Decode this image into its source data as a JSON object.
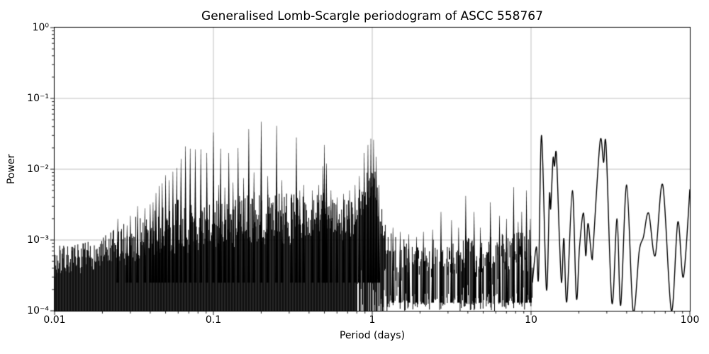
{
  "chart_data": {
    "type": "line",
    "title": "Generalised Lomb-Scargle periodogram of ASCC 558767",
    "xlabel": "Period (days)",
    "ylabel": "Power",
    "x_scale": "log",
    "y_scale": "log",
    "xlim": [
      0.01,
      100
    ],
    "ylim": [
      0.0001,
      1
    ],
    "grid": true,
    "grid_color": "#b0b0b0",
    "line_color": "#000000",
    "background_color": "#ffffff",
    "legend": null,
    "x_tick_labels": [
      "0.01",
      "0.1",
      "1",
      "10",
      "100"
    ],
    "y_tick_labels": [
      "10⁰",
      "10⁻¹",
      "10⁻²",
      "10⁻³",
      "10⁻⁴"
    ],
    "major_peaks": [
      [
        0.025,
        0.002
      ],
      [
        0.0286,
        0.0016
      ],
      [
        0.03,
        0.0022
      ],
      [
        0.0333,
        0.003
      ],
      [
        0.037,
        0.0028
      ],
      [
        0.04,
        0.0032
      ],
      [
        0.0417,
        0.0034
      ],
      [
        0.0435,
        0.0046
      ],
      [
        0.0455,
        0.0058
      ],
      [
        0.0476,
        0.0063
      ],
      [
        0.05,
        0.0082
      ],
      [
        0.0526,
        0.007
      ],
      [
        0.0556,
        0.0092
      ],
      [
        0.0588,
        0.0104
      ],
      [
        0.0625,
        0.014
      ],
      [
        0.0667,
        0.021
      ],
      [
        0.0714,
        0.0195
      ],
      [
        0.0769,
        0.019
      ],
      [
        0.0833,
        0.019
      ],
      [
        0.0909,
        0.017
      ],
      [
        0.1,
        0.033
      ],
      [
        0.108,
        0.006
      ],
      [
        0.111,
        0.0195
      ],
      [
        0.118,
        0.0055
      ],
      [
        0.125,
        0.017
      ],
      [
        0.133,
        0.0065
      ],
      [
        0.143,
        0.02
      ],
      [
        0.155,
        0.0075
      ],
      [
        0.167,
        0.037
      ],
      [
        0.18,
        0.009
      ],
      [
        0.2,
        0.047
      ],
      [
        0.22,
        0.008
      ],
      [
        0.25,
        0.041
      ],
      [
        0.27,
        0.007
      ],
      [
        0.31,
        0.0045
      ],
      [
        0.333,
        0.028
      ],
      [
        0.35,
        0.005
      ],
      [
        0.37,
        0.006
      ],
      [
        0.42,
        0.005
      ],
      [
        0.46,
        0.006
      ],
      [
        0.49,
        0.011
      ],
      [
        0.5,
        0.022
      ],
      [
        0.515,
        0.012
      ],
      [
        0.55,
        0.005
      ],
      [
        0.6,
        0.004
      ],
      [
        0.66,
        0.0045
      ],
      [
        0.72,
        0.005
      ],
      [
        0.78,
        0.006
      ],
      [
        0.83,
        0.008
      ],
      [
        0.89,
        0.017
      ],
      [
        0.94,
        0.022
      ],
      [
        0.98,
        0.027
      ],
      [
        1.02,
        0.026
      ],
      [
        1.06,
        0.015
      ],
      [
        1.1,
        0.006
      ],
      [
        1.35,
        0.0015
      ],
      [
        1.5,
        0.0013
      ],
      [
        1.7,
        0.0012
      ],
      [
        1.9,
        0.0011
      ],
      [
        2.1,
        0.0013
      ],
      [
        2.4,
        0.0014
      ],
      [
        2.71,
        0.0025
      ],
      [
        3.16,
        0.0019
      ],
      [
        3.5,
        0.0015
      ],
      [
        3.88,
        0.0042
      ],
      [
        4.38,
        0.0025
      ],
      [
        4.8,
        0.0015
      ],
      [
        5.55,
        0.0034
      ],
      [
        6.33,
        0.0022
      ],
      [
        7.0,
        0.002
      ],
      [
        7.77,
        0.0056
      ],
      [
        8.3,
        0.0018
      ],
      [
        8.74,
        0.0025
      ],
      [
        9.36,
        0.005
      ],
      [
        9.9,
        0.002
      ]
    ],
    "dense_region": {
      "range": [
        0.01,
        1.28
      ],
      "floor": 0.0001,
      "mass_top": [
        [
          0.01,
          0.00035
        ],
        [
          0.015,
          0.0004
        ],
        [
          0.02,
          0.00045
        ],
        [
          0.03,
          0.0005
        ],
        [
          0.05,
          0.00062
        ],
        [
          0.08,
          0.00072
        ],
        [
          0.1,
          0.0008
        ],
        [
          0.14,
          0.0009
        ],
        [
          0.2,
          0.001
        ],
        [
          0.28,
          0.0009
        ],
        [
          0.35,
          0.001
        ],
        [
          0.45,
          0.0013
        ],
        [
          0.5,
          0.0018
        ],
        [
          0.55,
          0.0012
        ],
        [
          0.65,
          0.001
        ],
        [
          0.75,
          0.0013
        ],
        [
          0.85,
          0.002
        ],
        [
          0.93,
          0.0035
        ],
        [
          1.0,
          0.005
        ],
        [
          1.06,
          0.003
        ],
        [
          1.12,
          0.0013
        ],
        [
          1.2,
          0.0008
        ],
        [
          1.28,
          0.0006
        ]
      ],
      "spike_env": [
        [
          0.01,
          0.00085
        ],
        [
          0.015,
          0.0009
        ],
        [
          0.02,
          0.0011
        ],
        [
          0.025,
          0.0016
        ],
        [
          0.03,
          0.002
        ],
        [
          0.04,
          0.0028
        ],
        [
          0.05,
          0.0035
        ],
        [
          0.06,
          0.004
        ],
        [
          0.07,
          0.0035
        ],
        [
          0.085,
          0.003
        ],
        [
          0.1,
          0.004
        ],
        [
          0.12,
          0.0035
        ],
        [
          0.14,
          0.004
        ],
        [
          0.17,
          0.005
        ],
        [
          0.2,
          0.006
        ],
        [
          0.25,
          0.005
        ],
        [
          0.3,
          0.0045
        ],
        [
          0.35,
          0.0045
        ],
        [
          0.4,
          0.004
        ],
        [
          0.45,
          0.005
        ],
        [
          0.5,
          0.007
        ],
        [
          0.55,
          0.0045
        ],
        [
          0.6,
          0.0035
        ],
        [
          0.7,
          0.004
        ],
        [
          0.8,
          0.005
        ],
        [
          0.9,
          0.009
        ],
        [
          0.97,
          0.014
        ],
        [
          1.03,
          0.012
        ],
        [
          1.1,
          0.005
        ],
        [
          1.2,
          0.002
        ],
        [
          1.28,
          0.0015
        ]
      ]
    },
    "stroke_region": {
      "range": [
        1.28,
        10.2
      ],
      "floor": 0.0001,
      "env": [
        [
          1.28,
          0.0013
        ],
        [
          1.6,
          0.0011
        ],
        [
          2.0,
          0.0009
        ],
        [
          2.5,
          0.001
        ],
        [
          3.0,
          0.0011
        ],
        [
          4.0,
          0.0013
        ],
        [
          5.0,
          0.0011
        ],
        [
          6.0,
          0.0011
        ],
        [
          7.0,
          0.0013
        ],
        [
          8.0,
          0.0014
        ],
        [
          9.0,
          0.0017
        ],
        [
          10.2,
          0.0014
        ]
      ]
    },
    "smooth_curve": [
      [
        10.2,
        0.00025
      ],
      [
        10.8,
        0.0008
      ],
      [
        11.15,
        0.0003
      ],
      [
        11.65,
        0.03
      ],
      [
        12.5,
        0.0002
      ],
      [
        13.05,
        0.0042
      ],
      [
        13.3,
        0.0028
      ],
      [
        13.75,
        0.014
      ],
      [
        14.05,
        0.011
      ],
      [
        14.45,
        0.016
      ],
      [
        15.1,
        0.001
      ],
      [
        15.6,
        0.00025
      ],
      [
        16.1,
        0.00105
      ],
      [
        16.8,
        0.000135
      ],
      [
        18.2,
        0.005
      ],
      [
        19.3,
        0.00015
      ],
      [
        20.2,
        0.0008
      ],
      [
        21.4,
        0.0024
      ],
      [
        22.1,
        0.0006
      ],
      [
        22.8,
        0.0017
      ],
      [
        23.6,
        0.0009
      ],
      [
        24.2,
        0.00053
      ],
      [
        24.7,
        0.0009
      ],
      [
        27.2,
        0.0245
      ],
      [
        28.6,
        0.0125
      ],
      [
        29.7,
        0.021
      ],
      [
        32.3,
        0.00013
      ],
      [
        34.8,
        0.002
      ],
      [
        36.7,
        0.00012
      ],
      [
        40,
        0.006
      ],
      [
        43.9,
        0.0001
      ],
      [
        48,
        0.0007
      ],
      [
        51,
        0.0011
      ],
      [
        55,
        0.0024
      ],
      [
        60.5,
        0.0006
      ],
      [
        67.5,
        0.006
      ],
      [
        76.5,
        0.0001
      ],
      [
        84,
        0.0018
      ],
      [
        91,
        0.0003
      ],
      [
        100,
        0.0052
      ]
    ]
  }
}
